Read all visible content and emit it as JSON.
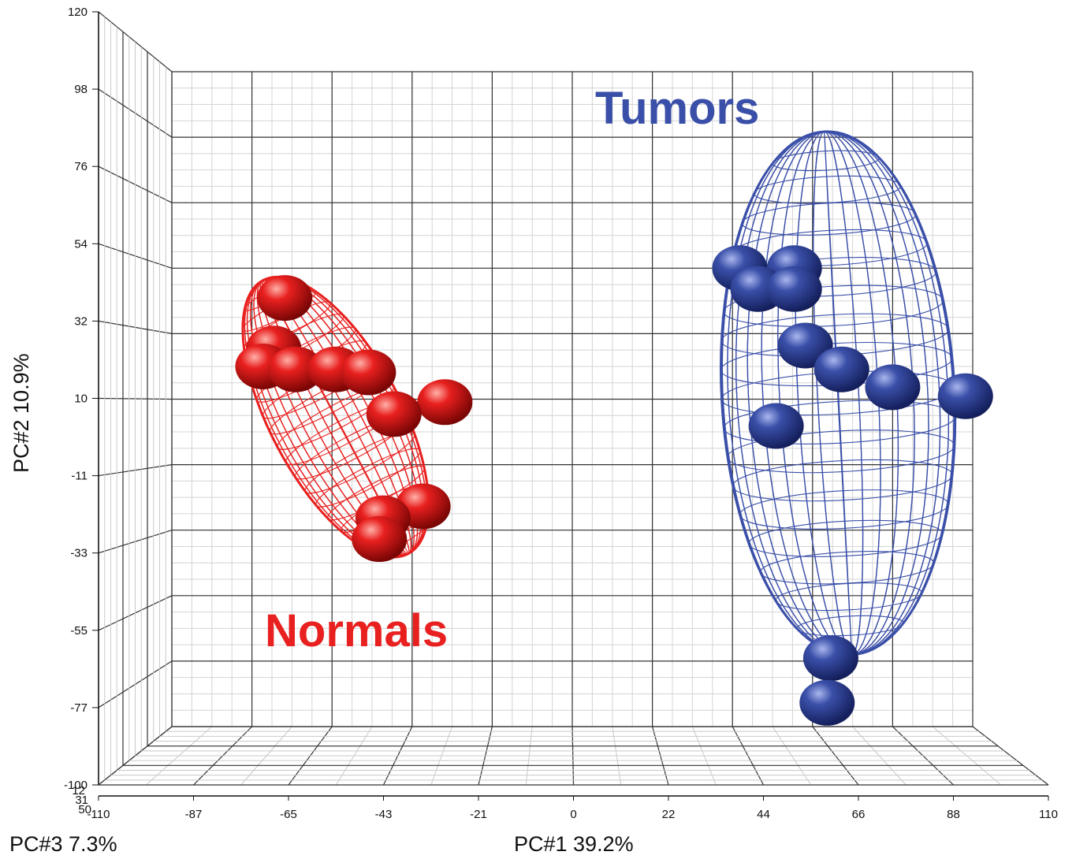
{
  "chart_data": {
    "type": "scatter",
    "xlabel": "PC#1  39.2%",
    "ylabel": "PC#2  10.9%",
    "zlabel": "PC#3  7.3%",
    "xticks": [
      "-110",
      "-87",
      "-65",
      "-43",
      "-21",
      "0",
      "22",
      "44",
      "66",
      "88",
      "110"
    ],
    "yticks": [
      "120",
      "98",
      "76",
      "54",
      "32",
      "10",
      "-11",
      "-33",
      "-55",
      "-77",
      "-100"
    ],
    "zticks": [
      "50",
      "31",
      "12"
    ],
    "xlim": [
      -110,
      110
    ],
    "ylim": [
      -100,
      120
    ],
    "grid": true,
    "annotations": [
      "Tumors",
      "Normals"
    ],
    "colors": {
      "Normals": "#e8201f",
      "Tumors": "#3a4fa8"
    },
    "series": [
      {
        "name": "Normals",
        "points": [
          {
            "x": -79,
            "y": 44
          },
          {
            "x": -82,
            "y": 27
          },
          {
            "x": -85,
            "y": 21
          },
          {
            "x": -76,
            "y": 20
          },
          {
            "x": -65,
            "y": 20
          },
          {
            "x": -56,
            "y": 19
          },
          {
            "x": -35,
            "y": 9
          },
          {
            "x": -49,
            "y": 5
          },
          {
            "x": -41,
            "y": -26
          },
          {
            "x": -52,
            "y": -30
          },
          {
            "x": -53,
            "y": -37
          }
        ],
        "ellipse": {
          "cx": -65,
          "cy": 4,
          "rx": 18,
          "ry": 52,
          "rotate": -28
        }
      },
      {
        "name": "Tumors",
        "points": [
          {
            "x": 46,
            "y": 54
          },
          {
            "x": 61,
            "y": 54
          },
          {
            "x": 51,
            "y": 47
          },
          {
            "x": 61,
            "y": 47
          },
          {
            "x": 64,
            "y": 28
          },
          {
            "x": 74,
            "y": 20
          },
          {
            "x": 88,
            "y": 14
          },
          {
            "x": 108,
            "y": 11
          },
          {
            "x": 56,
            "y": 1
          },
          {
            "x": 71,
            "y": -77
          },
          {
            "x": 70,
            "y": -92
          }
        ],
        "ellipse": {
          "cx": 73,
          "cy": 12,
          "rx": 32,
          "ry": 88,
          "rotate": -3
        }
      }
    ]
  }
}
